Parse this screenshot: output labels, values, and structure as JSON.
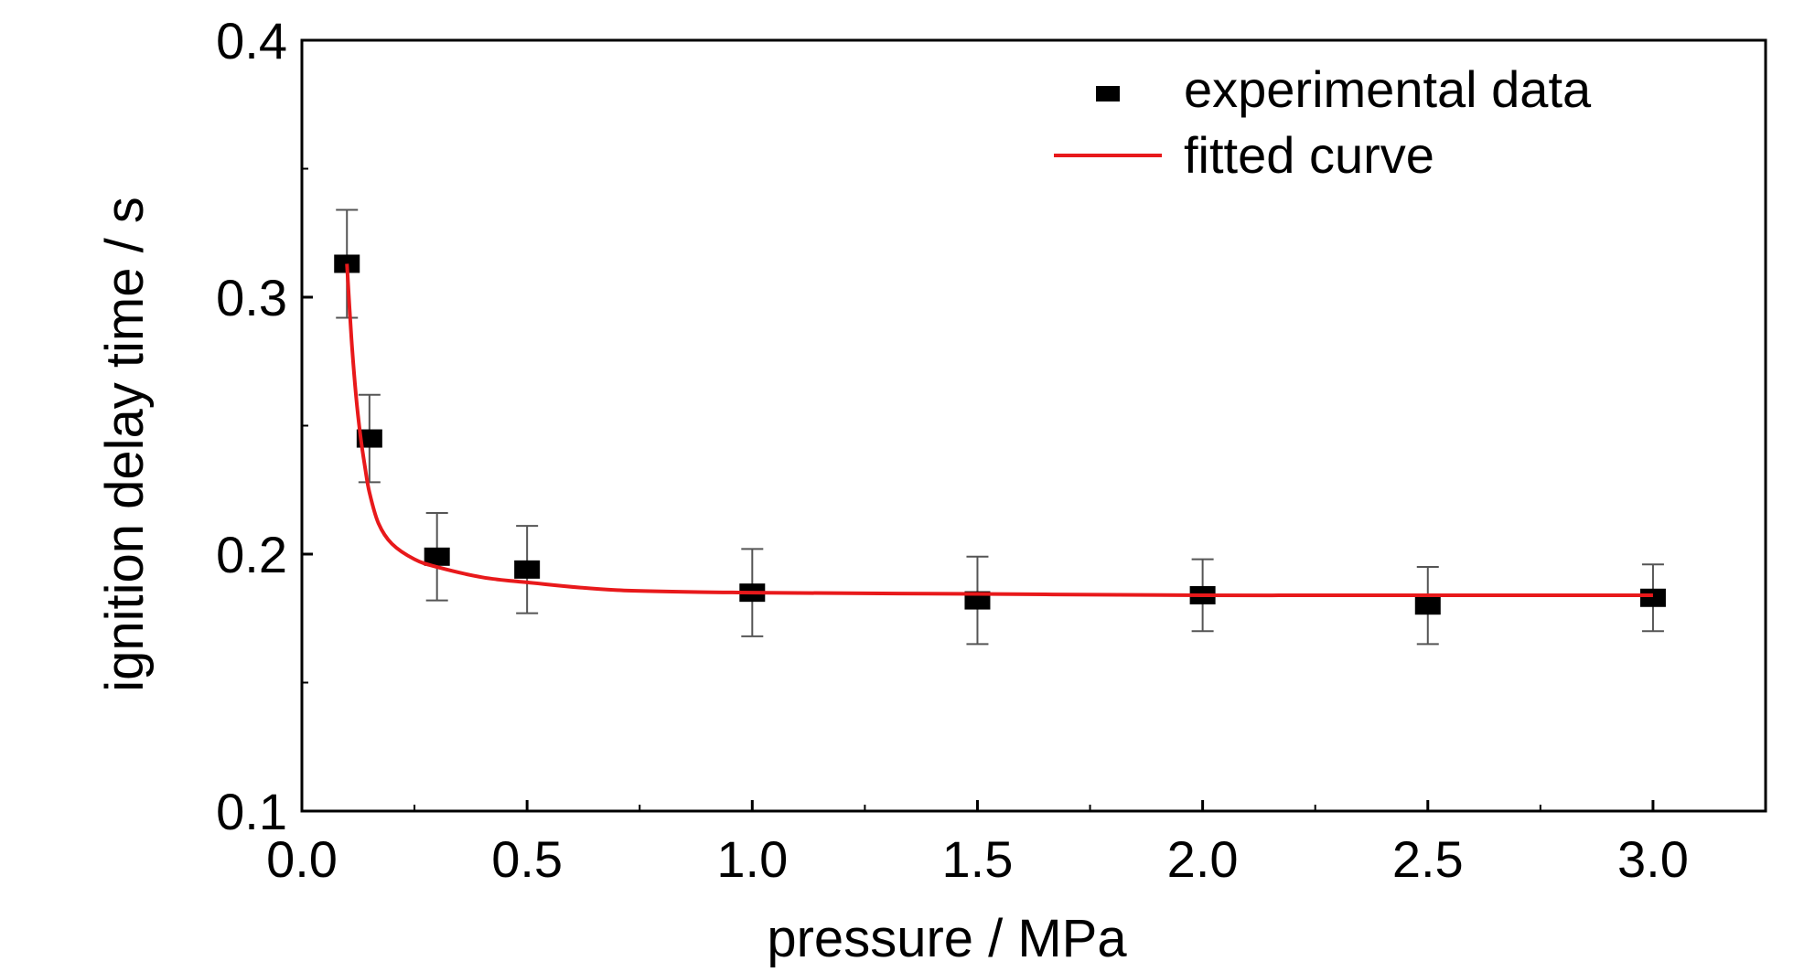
{
  "chart_data": {
    "type": "scatter",
    "title": "",
    "xlabel": "pressure / MPa",
    "ylabel": "ignition delay time / s",
    "xlim": [
      0.0,
      3.25
    ],
    "ylim": [
      0.1,
      0.4
    ],
    "xticks": [
      0.0,
      0.5,
      1.0,
      1.5,
      2.0,
      2.5,
      3.0
    ],
    "xtick_labels": [
      "0.0",
      "0.5",
      "1.0",
      "1.5",
      "2.0",
      "2.5",
      "3.0"
    ],
    "yticks": [
      0.1,
      0.2,
      0.3,
      0.4
    ],
    "ytick_labels": [
      "0.1",
      "0.2",
      "0.3",
      "0.4"
    ],
    "grid": false,
    "legend_position": "top-right",
    "series": [
      {
        "name": "experimental data",
        "kind": "points-with-error-bars",
        "color": "#000000",
        "marker": "square",
        "x": [
          0.1,
          0.15,
          0.3,
          0.5,
          1.0,
          1.5,
          2.0,
          2.5,
          3.0
        ],
        "y": [
          0.313,
          0.245,
          0.199,
          0.194,
          0.185,
          0.182,
          0.184,
          0.18,
          0.183
        ],
        "yerr": [
          0.021,
          0.017,
          0.017,
          0.017,
          0.017,
          0.017,
          0.014,
          0.015,
          0.013
        ]
      },
      {
        "name": "fitted curve",
        "kind": "line",
        "color": "#e8191b",
        "x": [
          0.1,
          0.11,
          0.12,
          0.13,
          0.14,
          0.15,
          0.17,
          0.2,
          0.25,
          0.3,
          0.4,
          0.5,
          0.7,
          1.0,
          1.5,
          2.0,
          2.5,
          3.0
        ],
        "y": [
          0.313,
          0.284,
          0.262,
          0.246,
          0.234,
          0.224,
          0.212,
          0.204,
          0.198,
          0.195,
          0.191,
          0.189,
          0.186,
          0.185,
          0.1845,
          0.184,
          0.184,
          0.184
        ]
      }
    ]
  }
}
